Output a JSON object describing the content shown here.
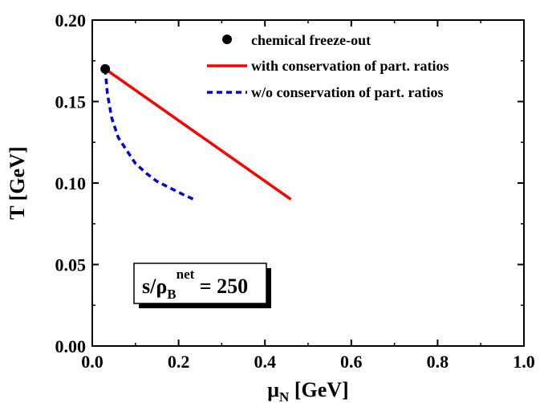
{
  "chart_data": {
    "type": "line",
    "xlabel": "μ",
    "xlabel_sub": "N",
    "xlabel_unit": " [GeV]",
    "ylabel": "T [GeV]",
    "xlim": [
      0.0,
      1.0
    ],
    "ylim": [
      0.0,
      0.2
    ],
    "x_ticks": [
      0.0,
      0.2,
      0.4,
      0.6,
      0.8,
      1.0
    ],
    "x_tick_labels": [
      "0.0",
      "0.2",
      "0.4",
      "0.6",
      "0.8",
      "1.0"
    ],
    "y_ticks": [
      0.0,
      0.05,
      0.1,
      0.15,
      0.2
    ],
    "y_tick_labels": [
      "0.00",
      "0.05",
      "0.10",
      "0.15",
      "0.20"
    ],
    "x_minor_step": 0.1,
    "y_minor_step": 0.025,
    "legend_position": "top-right",
    "series": [
      {
        "name": "chemical freeze-out",
        "kind": "marker",
        "color": "#000000",
        "x": [
          0.03
        ],
        "y": [
          0.17
        ]
      },
      {
        "name": "with conservation of part. ratios",
        "kind": "solid",
        "color": "#ff0000",
        "x": [
          0.03,
          0.46
        ],
        "y": [
          0.17,
          0.09
        ]
      },
      {
        "name": "w/o conservation of part. ratios",
        "kind": "dashed",
        "color": "#0000dd",
        "x": [
          0.03,
          0.035,
          0.045,
          0.06,
          0.08,
          0.1,
          0.125,
          0.15,
          0.18,
          0.21,
          0.235
        ],
        "y": [
          0.17,
          0.155,
          0.14,
          0.128,
          0.12,
          0.112,
          0.106,
          0.101,
          0.097,
          0.093,
          0.09
        ]
      }
    ],
    "annotation": {
      "prefix": "s/ρ",
      "sub": "B",
      "sup": "net",
      "suffix": " = 250"
    }
  }
}
